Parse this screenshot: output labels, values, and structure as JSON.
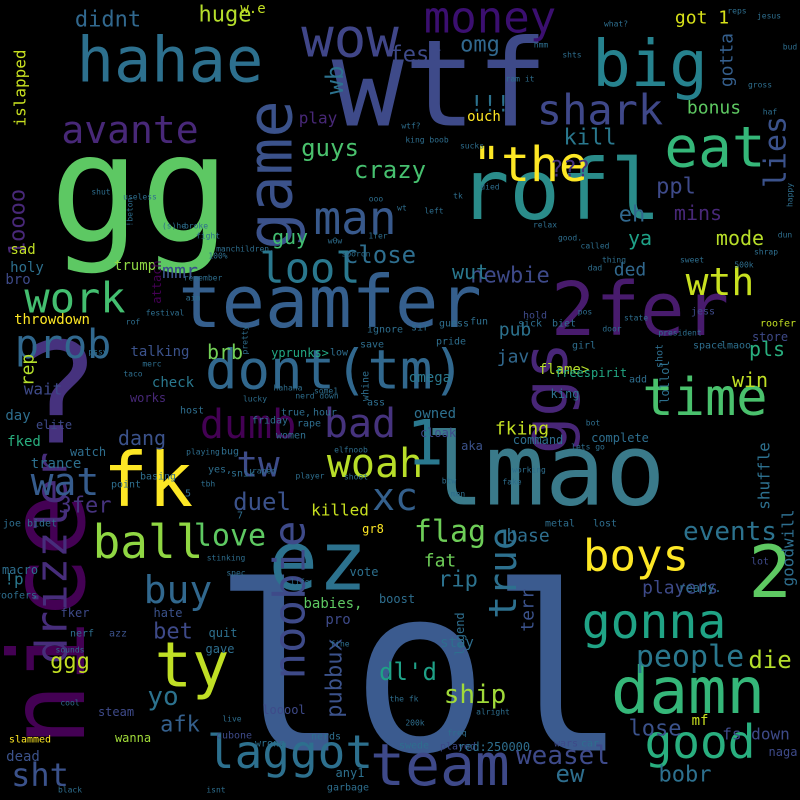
{
  "words": [
    {
      "t": "lol",
      "c": "#3b5b8f"
    },
    {
      "t": "lmao",
      "c": "#3a7a8a"
    },
    {
      "t": "gg",
      "c": "#5dc863"
    },
    {
      "t": "rofl",
      "c": "#2a8c8a"
    },
    {
      "t": "teamfer",
      "c": "#355f8d"
    },
    {
      "t": "wtf",
      "c": "#3e4a89"
    },
    {
      "t": "2fer",
      "c": "#481b6d"
    },
    {
      "t": "?",
      "c": "#46327e"
    },
    {
      "t": "nice",
      "c": "#440154"
    },
    {
      "t": "ez",
      "c": "#2c728e"
    },
    {
      "t": "fk",
      "c": "#fde725"
    },
    {
      "t": "hahae",
      "c": "#2d708e"
    },
    {
      "t": "big",
      "c": "#26828e"
    },
    {
      "t": "game",
      "c": "#3b528b"
    },
    {
      "t": "dont(tm)",
      "c": "#31688e"
    },
    {
      "t": "damn",
      "c": "#35b779"
    },
    {
      "t": "good",
      "c": "#29af7f"
    },
    {
      "t": "team",
      "c": "#3e4989"
    },
    {
      "t": "laggot",
      "c": "#2d708e"
    },
    {
      "t": "drizzler",
      "c": "#472d7b"
    },
    {
      "t": "ball",
      "c": "#90d743"
    },
    {
      "t": "woah",
      "c": "#b8de29"
    },
    {
      "t": "ty",
      "c": "#c0df25"
    },
    {
      "t": "wow",
      "c": "#404688"
    },
    {
      "t": "money",
      "c": "#3b0f70"
    },
    {
      "t": "gonna",
      "c": "#20a486"
    },
    {
      "t": "boys",
      "c": "#fde725"
    },
    {
      "t": "time",
      "c": "#4ac16d"
    },
    {
      "t": "ggs",
      "c": "#482677"
    },
    {
      "t": "man",
      "c": "#38598c"
    },
    {
      "t": "eat",
      "c": "#35b779"
    },
    {
      "t": "shark",
      "c": "#3f4889"
    },
    {
      "t": "avante",
      "c": "#482878"
    },
    {
      "t": "\"the",
      "c": "#fde725"
    },
    {
      "t": "lool",
      "c": "#2a788e"
    },
    {
      "t": "work",
      "c": "#44bf70"
    },
    {
      "t": "prob",
      "c": "#31688e"
    },
    {
      "t": "wth",
      "c": "#c8e020"
    },
    {
      "t": "dumb",
      "c": "#440154"
    },
    {
      "t": "bad",
      "c": "#46337e"
    },
    {
      "t": "tw",
      "c": "#3e4c8a"
    },
    {
      "t": "1",
      "c": "#2a788e"
    },
    {
      "t": "xc",
      "c": "#34608d"
    },
    {
      "t": "2",
      "c": "#5ec962"
    },
    {
      "t": "sht",
      "c": "#3b528b"
    },
    {
      "t": "wat",
      "c": "#365c8d"
    },
    {
      "t": "noobie",
      "c": "#3e4a89"
    },
    {
      "t": "true",
      "c": "#2d708e"
    },
    {
      "t": "buy",
      "c": "#31688e"
    },
    {
      "t": "people",
      "c": "#2a788e"
    },
    {
      "t": "lies",
      "c": "#3b528b"
    },
    {
      "t": "1oooo",
      "c": "#482878"
    },
    {
      "t": "love",
      "c": "#5ec962"
    },
    {
      "t": "flag",
      "c": "#6ece58"
    },
    {
      "t": "duel",
      "c": "#3b528b"
    },
    {
      "t": "ship",
      "c": "#a0da39"
    },
    {
      "t": "yo",
      "c": "#2c728e"
    },
    {
      "t": "weasel",
      "c": "#3e4a89"
    },
    {
      "t": "ew",
      "c": "#2e6e8e"
    },
    {
      "t": "events",
      "c": "#2c728e"
    },
    {
      "t": "pubbux",
      "c": "#3b528b"
    },
    {
      "t": "dl'd",
      "c": "#1fa187"
    },
    {
      "t": "ggg",
      "c": "#c2df23"
    },
    {
      "t": "die",
      "c": "#b5de2b"
    },
    {
      "t": "afk",
      "c": "#35608d"
    },
    {
      "t": "bet",
      "c": "#3e4a89"
    },
    {
      "t": "lose",
      "c": "#3b528b"
    },
    {
      "t": "bobr",
      "c": "#2d708e"
    },
    {
      "t": "guys",
      "c": "#4ac16d"
    },
    {
      "t": "crazy",
      "c": "#46c06f"
    },
    {
      "t": "kill",
      "c": "#2a788e"
    },
    {
      "t": "omg",
      "c": "#31688e"
    },
    {
      "t": "fest",
      "c": "#3e4a89"
    },
    {
      "t": "wb",
      "c": "#2c728e"
    },
    {
      "t": "close",
      "c": "#2e6e8e"
    },
    {
      "t": "guy",
      "c": "#42be71"
    },
    {
      "t": "mmr",
      "c": "#3b528b"
    },
    {
      "t": "mode",
      "c": "#b8de29"
    },
    {
      "t": "ya",
      "c": "#1fa187"
    },
    {
      "t": "eh",
      "c": "#31688e"
    },
    {
      "t": "mins",
      "c": "#482878"
    },
    {
      "t": "ppl",
      "c": "#3e4a89"
    },
    {
      "t": "huge",
      "c": "#b5de2b"
    },
    {
      "t": "didnt",
      "c": "#31688e"
    },
    {
      "t": "got 1",
      "c": "#d8e219"
    },
    {
      "t": "gotta",
      "c": "#355f8d"
    },
    {
      "t": "bonus",
      "c": "#5ec962"
    },
    {
      "t": "islapped",
      "c": "#c8e020"
    },
    {
      "t": "newbie",
      "c": "#3e4a89"
    },
    {
      "t": "wut",
      "c": "#2a788e"
    },
    {
      "t": "ded",
      "c": "#31688e"
    },
    {
      "t": "pub",
      "c": "#2c728e"
    },
    {
      "t": "jav",
      "c": "#31688e"
    },
    {
      "t": "pls",
      "c": "#29af7f"
    },
    {
      "t": "win",
      "c": "#c0df25"
    },
    {
      "t": "brb",
      "c": "#73d056"
    },
    {
      "t": "rip",
      "c": "#2c728e"
    },
    {
      "t": "base",
      "c": "#2e6e8e"
    },
    {
      "t": "terr",
      "c": "#3b528b"
    },
    {
      "t": "fking",
      "c": "#c2df23"
    },
    {
      "t": "dang",
      "c": "#3b528b"
    },
    {
      "t": "3fer",
      "c": "#46337e"
    },
    {
      "t": "rep",
      "c": "#b5de2b"
    },
    {
      "t": "players",
      "c": "#3e4a89"
    },
    {
      "t": "killed",
      "c": "#c8e020"
    },
    {
      "t": "fat",
      "c": "#6ece58"
    },
    {
      "t": "shuffle",
      "c": "#2d708e"
    },
    {
      "t": "goodwill",
      "c": "#2e6e8e"
    },
    {
      "t": "!!!",
      "c": "#2c728e"
    },
    {
      "t": "???",
      "c": "#46337e"
    },
    {
      "t": "play",
      "c": "#482878"
    },
    {
      "t": "ouch",
      "c": "#fde725"
    },
    {
      "t": "w.e",
      "c": "#c2df23"
    },
    {
      "t": "throwdown",
      "c": "#fde725"
    },
    {
      "t": "sad",
      "c": "#c0df25"
    },
    {
      "t": "bro",
      "c": "#3e4a89"
    },
    {
      "t": "holy",
      "c": "#2d708e"
    },
    {
      "t": "trump",
      "c": "#8fd744"
    },
    {
      "t": "attach",
      "c": "#440154"
    },
    {
      "t": "talking",
      "c": "#3b528b"
    },
    {
      "t": "yprunks>",
      "c": "#22a884"
    },
    {
      "t": "omega",
      "c": "#2a788e"
    },
    {
      "t": "flame>",
      "c": "#b5de2b"
    },
    {
      "t": "freespirit",
      "c": "#22a884"
    },
    {
      "t": "check",
      "c": "#2a788e"
    },
    {
      "t": "works",
      "c": "#482878"
    },
    {
      "t": "wait",
      "c": "#3e4a89"
    },
    {
      "t": "day",
      "c": "#2e6e8e"
    },
    {
      "t": "fked",
      "c": "#29af7f"
    },
    {
      "t": "trance",
      "c": "#2d708e"
    },
    {
      "t": "elite",
      "c": "#3e4a89"
    },
    {
      "t": "watch",
      "c": "#2e6e8e"
    },
    {
      "t": "owned",
      "c": "#2d708e"
    },
    {
      "t": "cloak",
      "c": "#3e4a89"
    },
    {
      "t": "aka",
      "c": "#3b528b"
    },
    {
      "t": "command",
      "c": "#2e6e8e"
    },
    {
      "t": "complete",
      "c": "#2e6e8e"
    },
    {
      "t": "gr8",
      "c": "#fde725"
    },
    {
      "t": "vote",
      "c": "#2d708e"
    },
    {
      "t": "boost",
      "c": "#2e6e8e"
    },
    {
      "t": "babies,",
      "c": "#5ec962"
    },
    {
      "t": "pro",
      "c": "#3e4a89"
    },
    {
      "t": "legend",
      "c": "#2e6e8e"
    },
    {
      "t": "stay",
      "c": "#2e6e8e"
    },
    {
      "t": "hate",
      "c": "#3b528b"
    },
    {
      "t": "quit",
      "c": "#2d708e"
    },
    {
      "t": "gave",
      "c": "#2e6e8e"
    },
    {
      "t": "macro",
      "c": "#2e6e8e"
    },
    {
      "t": "!p",
      "c": "#2a788e"
    },
    {
      "t": "fker",
      "c": "#3e4a89"
    },
    {
      "t": "nerf",
      "c": "#2e6e8e"
    },
    {
      "t": "azz",
      "c": "#3b528b"
    },
    {
      "t": "looool",
      "c": "#3e4a89"
    },
    {
      "t": "nerds",
      "c": "#2e6e8e"
    },
    {
      "t": "steam",
      "c": "#3e4a89"
    },
    {
      "t": "wanna",
      "c": "#a0da39"
    },
    {
      "t": "slammed",
      "c": "#fde725"
    },
    {
      "t": "dead",
      "c": "#3b528b"
    },
    {
      "t": "any1",
      "c": "#2d708e"
    },
    {
      "t": "garbage",
      "c": "#2e6e8e"
    },
    {
      "t": "cubone",
      "c": "#3e4a89"
    },
    {
      "t": "wrong",
      "c": "#2d708e"
    },
    {
      "t": "swede",
      "c": "#2e6e8e"
    },
    {
      "t": "played",
      "c": "#3e4a89"
    },
    {
      "t": "red:250000",
      "c": "#2e6e8e"
    },
    {
      "t": "wars",
      "c": "#3e4a89"
    },
    {
      "t": "car",
      "c": "#2e6e8e"
    },
    {
      "t": "mf",
      "c": "#c8e020"
    },
    {
      "t": "fs down",
      "c": "#3e4a89"
    },
    {
      "t": "naga",
      "c": "#3e4a89"
    },
    {
      "t": "ready.",
      "c": "#2e6e8e"
    },
    {
      "t": "lot",
      "c": "#3e4a89"
    },
    {
      "t": "lost",
      "c": "#2e6e8e"
    },
    {
      "t": "metal",
      "c": "#2e6e8e"
    },
    {
      "t": "store",
      "c": "#3e4a89"
    },
    {
      "t": "roofer",
      "c": "#c2df23"
    },
    {
      "t": "jess",
      "c": "#3e4a89"
    },
    {
      "t": "space",
      "c": "#2e6e8e"
    },
    {
      "t": "shot",
      "c": "#2e6e8e"
    },
    {
      "t": "lmaoo",
      "c": "#2d708e"
    },
    {
      "t": "lollol",
      "c": "#2d708e"
    },
    {
      "t": "add",
      "c": "#2e6e8e"
    },
    {
      "t": "king",
      "c": "#2d708e"
    },
    {
      "t": "sick",
      "c": "#2e6e8e"
    },
    {
      "t": "biet",
      "c": "#2e6e8e"
    },
    {
      "t": "hold",
      "c": "#3e4a89"
    },
    {
      "t": "guess",
      "c": "#2e6e8e"
    },
    {
      "t": "girl",
      "c": "#2e6e8e"
    },
    {
      "t": "pride",
      "c": "#2e6e8e"
    },
    {
      "t": "fun",
      "c": "#2e6e8e"
    },
    {
      "t": "sir",
      "c": "#2e6e8e"
    },
    {
      "t": "save",
      "c": "#2e6e8e"
    },
    {
      "t": "ignore",
      "c": "#2e6e8e"
    },
    {
      "t": "low",
      "c": "#2e6e8e"
    },
    {
      "t": "whine",
      "c": "#2e6e8e"
    },
    {
      "t": "host",
      "c": "#2e6e8e"
    },
    {
      "t": "ass",
      "c": "#2e6e8e"
    },
    {
      "t": "hour",
      "c": "#2e6e8e"
    },
    {
      "t": "rape",
      "c": "#2e6e8e"
    },
    {
      "t": "women",
      "c": "#2e6e8e"
    },
    {
      "t": "true,",
      "c": "#2e6e8e"
    },
    {
      "t": "friday",
      "c": "#2e6e8e"
    },
    {
      "t": "bug",
      "c": "#2e6e8e"
    },
    {
      "t": "yes,",
      "c": "#2e6e8e"
    },
    {
      "t": "point",
      "c": "#2e6e8e"
    },
    {
      "t": "basing",
      "c": "#2e6e8e"
    },
    {
      "t": "snik",
      "c": "#2e6e8e"
    },
    {
      "t": "5",
      "c": "#2e6e8e"
    },
    {
      "t": "7",
      "c": "#2e6e8e"
    },
    {
      "t": "joe bidet",
      "c": "#2e6e8e"
    },
    {
      "t": "roofers",
      "c": "#2e6e8e"
    },
    {
      "t": "sounds",
      "c": "#2e6e8e"
    },
    {
      "t": "cool",
      "c": "#2e6e8e"
    },
    {
      "t": "black",
      "c": "#2e6e8e"
    },
    {
      "t": "isnt",
      "c": "#2e6e8e"
    },
    {
      "t": "live",
      "c": "#2e6e8e"
    },
    {
      "t": "alright",
      "c": "#2e6e8e"
    },
    {
      "t": "freq",
      "c": "#2e6e8e"
    },
    {
      "t": "200k",
      "c": "#2e6e8e"
    },
    {
      "t": "the fk",
      "c": "#2e6e8e"
    },
    {
      "t": "fine",
      "c": "#2e6e8e"
    },
    {
      "t": "life",
      "c": "#2e6e8e"
    },
    {
      "t": "spec",
      "c": "#2e6e8e"
    },
    {
      "t": "stinking",
      "c": "#2e6e8e"
    },
    {
      "t": "tbh",
      "c": "#2e6e8e"
    },
    {
      "t": "playing",
      "c": "#2e6e8e"
    },
    {
      "t": "raped",
      "c": "#2e6e8e"
    },
    {
      "t": "player",
      "c": "#2e6e8e"
    },
    {
      "t": "shoot",
      "c": "#2e6e8e"
    },
    {
      "t": "elfnoob",
      "c": "#2e6e8e"
    },
    {
      "t": "btw",
      "c": "#2e6e8e"
    },
    {
      "t": "men",
      "c": "#2e6e8e"
    },
    {
      "t": "fake",
      "c": "#2e6e8e"
    },
    {
      "t": "working",
      "c": "#2e6e8e"
    },
    {
      "t": "lets go",
      "c": "#2e6e8e"
    },
    {
      "t": "bot",
      "c": "#2e6e8e"
    },
    {
      "t": "broke",
      "c": "#2e6e8e"
    },
    {
      "t": "(s)he",
      "c": "#2e6e8e"
    },
    {
      "t": "useless",
      "c": "#2e6e8e"
    },
    {
      "t": "shut",
      "c": "#2e6e8e"
    },
    {
      "t": "!beton",
      "c": "#2e6e8e"
    },
    {
      "t": "fight",
      "c": "#2e6e8e"
    },
    {
      "t": "100%",
      "c": "#2e6e8e"
    },
    {
      "t": "manchildren,",
      "c": "#2e6e8e"
    },
    {
      "t": "remember",
      "c": "#2e6e8e"
    },
    {
      "t": "aim",
      "c": "#2e6e8e"
    },
    {
      "t": "rof",
      "c": "#2e6e8e"
    },
    {
      "t": "pssy",
      "c": "#2e6e8e"
    },
    {
      "t": "taco",
      "c": "#2e6e8e"
    },
    {
      "t": "merc",
      "c": "#2e6e8e"
    },
    {
      "t": "festival",
      "c": "#2e6e8e"
    },
    {
      "t": "pretty",
      "c": "#2e6e8e"
    },
    {
      "t": "some1",
      "c": "#2e6e8e"
    },
    {
      "t": "nerd down",
      "c": "#2e6e8e"
    },
    {
      "t": "hahaha",
      "c": "#2e6e8e"
    },
    {
      "t": "lucky",
      "c": "#2e6e8e"
    },
    {
      "t": "sporon",
      "c": "#2e6e8e"
    },
    {
      "t": "w0w",
      "c": "#2e6e8e"
    },
    {
      "t": "1fer",
      "c": "#2e6e8e"
    },
    {
      "t": "ooo",
      "c": "#2e6e8e"
    },
    {
      "t": "wt",
      "c": "#2e6e8e"
    },
    {
      "t": "left",
      "c": "#2e6e8e"
    },
    {
      "t": "tk",
      "c": "#2e6e8e"
    },
    {
      "t": "died",
      "c": "#2e6e8e"
    },
    {
      "t": "relax",
      "c": "#2e6e8e"
    },
    {
      "t": "good.",
      "c": "#2e6e8e"
    },
    {
      "t": "called",
      "c": "#2e6e8e"
    },
    {
      "t": "thing",
      "c": "#2e6e8e"
    },
    {
      "t": "dad",
      "c": "#2e6e8e"
    },
    {
      "t": "pos",
      "c": "#2e6e8e"
    },
    {
      "t": "door",
      "c": "#2e6e8e"
    },
    {
      "t": "state",
      "c": "#2e6e8e"
    },
    {
      "t": "president",
      "c": "#2e6e8e"
    },
    {
      "t": "sweet",
      "c": "#2e6e8e"
    },
    {
      "t": "500k",
      "c": "#2e6e8e"
    },
    {
      "t": "shrap",
      "c": "#2e6e8e"
    },
    {
      "t": "dun",
      "c": "#2e6e8e"
    },
    {
      "t": "happy",
      "c": "#2e6e8e"
    },
    {
      "t": "haf",
      "c": "#2e6e8e"
    },
    {
      "t": "gross",
      "c": "#2e6e8e"
    },
    {
      "t": "bud",
      "c": "#2e6e8e"
    },
    {
      "t": "jesus",
      "c": "#2e6e8e"
    },
    {
      "t": "reps",
      "c": "#2e6e8e"
    },
    {
      "t": "what?",
      "c": "#2e6e8e"
    },
    {
      "t": "shts",
      "c": "#2e6e8e"
    },
    {
      "t": "hmm",
      "c": "#2e6e8e"
    },
    {
      "t": "ram it",
      "c": "#2e6e8e"
    },
    {
      "t": "sucks",
      "c": "#2e6e8e"
    },
    {
      "t": "king boob",
      "c": "#2e6e8e"
    },
    {
      "t": "wtf?",
      "c": "#2e6e8e"
    },
    {
      "t": "yea",
      "c": "#2e6e8e"
    },
    {
      "t": "avantgarde",
      "c": "#2e6e8e"
    },
    {
      "t": "serf",
      "c": "#2e6e8e"
    },
    {
      "t": "imo",
      "c": "#2e6e8e"
    },
    {
      "t": "levi",
      "c": "#2e6e8e"
    },
    {
      "t": "times",
      "c": "#2e6e8e"
    },
    {
      "t": "starting",
      "c": "#2e6e8e"
    },
    {
      "t": "thor",
      "c": "#2e6e8e"
    },
    {
      "t": "hard",
      "c": "#2e6e8e"
    },
    {
      "t": "avant",
      "c": "#2e6e8e"
    },
    {
      "t": "yea,",
      "c": "#2e6e8e"
    },
    {
      "t": "no1",
      "c": "#2e6e8e"
    },
    {
      "t": "coupe",
      "c": "#2e6e8e"
    },
    {
      "t": "...?",
      "c": "#2e6e8e"
    },
    {
      "t": "free",
      "c": "#2e6e8e"
    },
    {
      "t": "tho",
      "c": "#2e6e8e"
    },
    {
      "t": "mines",
      "c": "#2e6e8e"
    },
    {
      "t": "texas",
      "c": "#2e6e8e"
    },
    {
      "t": "red",
      "c": "#2e6e8e"
    },
    {
      "t": "hit",
      "c": "#2e6e8e"
    },
    {
      "t": "beat",
      "c": "#2e6e8e"
    },
    {
      "t": "feel",
      "c": "#2e6e8e"
    },
    {
      "t": "noob",
      "c": "#2e6e8e"
    },
    {
      "t": "loves",
      "c": "#2e6e8e"
    },
    {
      "t": "god",
      "c": "#2e6e8e"
    },
    {
      "t": "yes.",
      "c": "#2e6e8e"
    },
    {
      "t": "early",
      "c": "#2e6e8e"
    },
    {
      "t": ":)",
      "c": "#2e6e8e"
    },
    {
      "t": "bitch",
      "c": "#2e6e8e"
    },
    {
      "t": "huh",
      "c": "#2e6e8e"
    },
    {
      "t": "(oszidas)>the",
      "c": "#2e6e8e"
    },
    {
      "t": "job",
      "c": "#2e6e8e"
    },
    {
      "t": "10",
      "c": "#2e6e8e"
    }
  ]
}
